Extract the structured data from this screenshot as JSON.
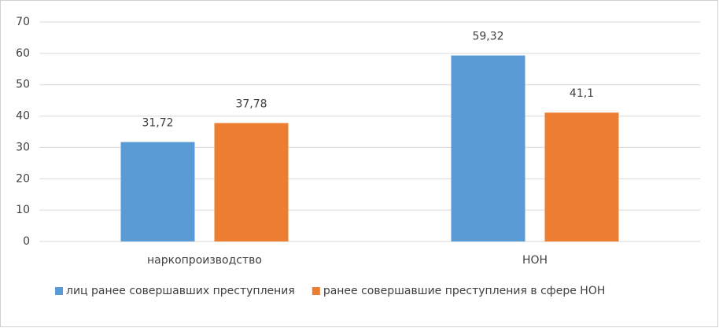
{
  "chart_data": {
    "type": "bar",
    "categories": [
      "наркопроизводство",
      "НОН"
    ],
    "series": [
      {
        "name": "лиц ранее совершавших преступления",
        "color": "#5b9bd5",
        "values": [
          31.72,
          59.32
        ],
        "value_labels": [
          "31,72",
          "59,32"
        ]
      },
      {
        "name": "ранее совершавшие преступления в сфере НОН",
        "color": "#ed7d31",
        "values": [
          37.78,
          41.1
        ],
        "value_labels": [
          "37,78",
          "41,1"
        ]
      }
    ],
    "ylim": [
      0,
      70
    ],
    "yticks": [
      0,
      10,
      20,
      30,
      40,
      50,
      60,
      70
    ],
    "grid": true,
    "legend": "bottom"
  }
}
